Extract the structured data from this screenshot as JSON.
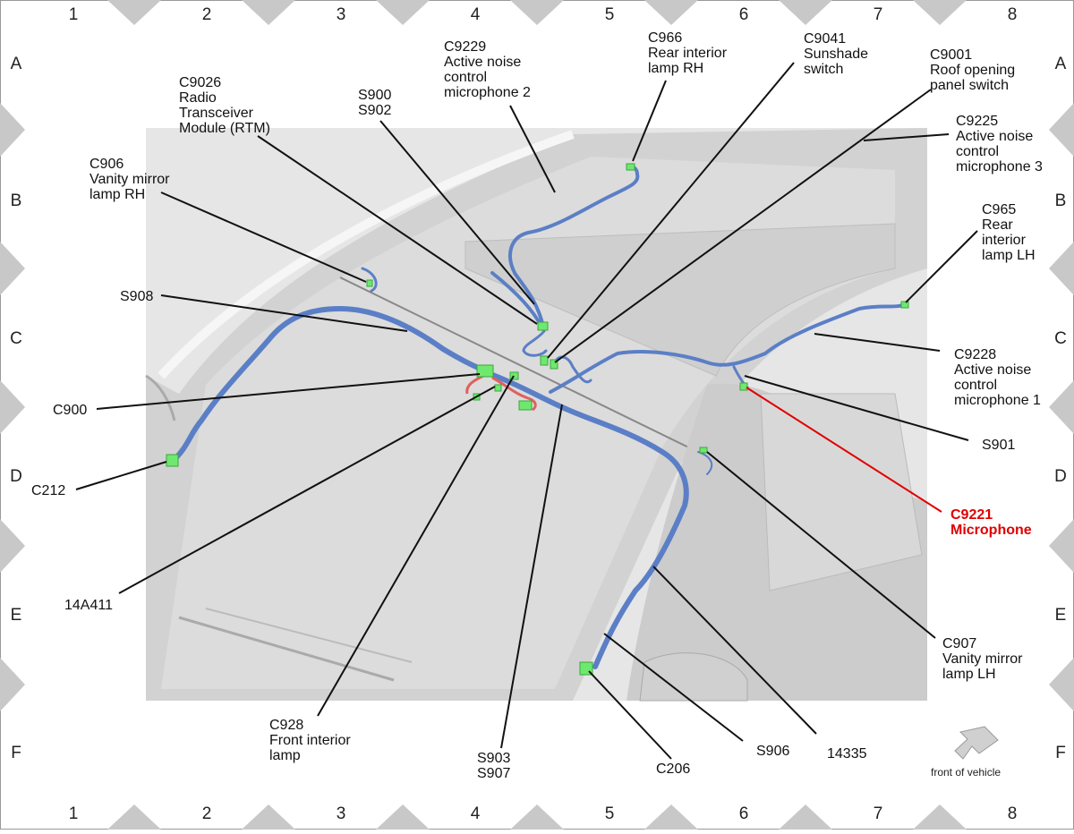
{
  "grid": {
    "columns": [
      "1",
      "2",
      "3",
      "4",
      "5",
      "6",
      "7",
      "8"
    ],
    "rows": [
      "A",
      "B",
      "C",
      "D",
      "E",
      "F"
    ]
  },
  "callouts": {
    "c9229": [
      "C9229",
      "Active noise",
      "control",
      "microphone 2"
    ],
    "c966": [
      "C966",
      "Rear interior",
      "lamp RH"
    ],
    "c9041": [
      "C9041",
      "Sunshade",
      "switch"
    ],
    "c9001": [
      "C9001",
      "Roof opening",
      "panel switch"
    ],
    "c9026": [
      "C9026",
      "Radio",
      "Transceiver",
      "Module (RTM)"
    ],
    "s900": [
      "S900",
      "S902"
    ],
    "c9225": [
      "C9225",
      "Active noise",
      "control",
      "microphone 3"
    ],
    "c906": [
      "C906",
      "Vanity mirror",
      "lamp RH"
    ],
    "c965": [
      "C965",
      "Rear",
      "interior",
      "lamp LH"
    ],
    "s908": [
      "S908"
    ],
    "c9228": [
      "C9228",
      "Active noise",
      "control",
      "microphone 1"
    ],
    "c900": [
      "C900"
    ],
    "s901": [
      "S901"
    ],
    "c212": [
      "C212"
    ],
    "c9221": [
      "C9221",
      "Microphone"
    ],
    "a14a411": [
      "14A411"
    ],
    "c907": [
      "C907",
      "Vanity mirror",
      "lamp LH"
    ],
    "c928": [
      "C928",
      "Front interior",
      "lamp"
    ],
    "s903": [
      "S903",
      "S907"
    ],
    "c206": [
      "C206"
    ],
    "s906": [
      "S906"
    ],
    "a14335": [
      "14335"
    ]
  },
  "front_label": "front of vehicle",
  "colors": {
    "harness": "#5b7fc6",
    "connector": "#6ee86e",
    "highlight": "#e10000",
    "border_triangle": "#c8c8c8"
  }
}
